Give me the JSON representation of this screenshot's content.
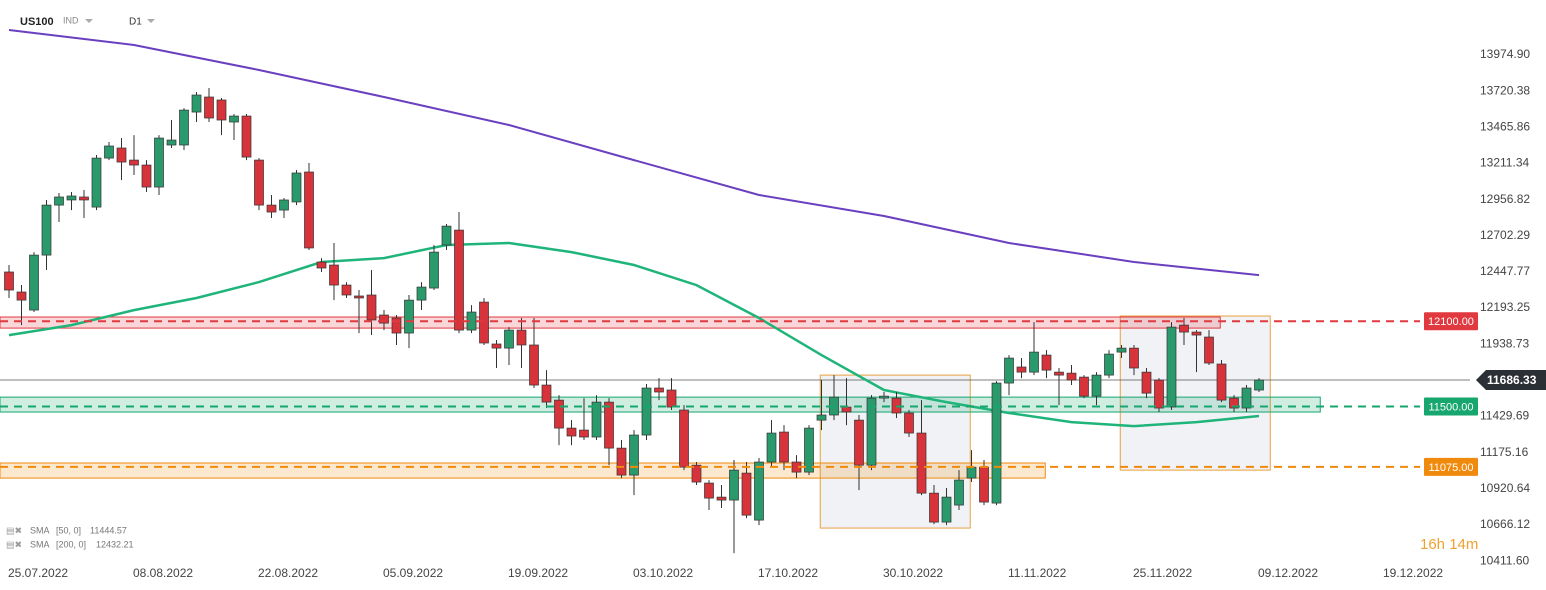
{
  "chart_data": {
    "type": "candlestick",
    "symbol": "US100",
    "market": "IND",
    "timeframe": "D1",
    "up_color": "#2a9a6c",
    "down_color": "#d6343a",
    "candles": {
      "open": [
        12447,
        12306,
        12179,
        12566,
        12918,
        12954,
        12975,
        12904,
        13249,
        13320,
        13235,
        13200,
        13045,
        13341,
        13341,
        13573,
        13679,
        13658,
        13503,
        13545,
        13235,
        12918,
        12883,
        12940,
        13151,
        12517,
        12496,
        12355,
        12278,
        12285,
        12144,
        12123,
        12017,
        12249,
        12334,
        12637,
        12742,
        12038,
        12235,
        11940,
        11911,
        12038,
        11933,
        11651,
        11545,
        11348,
        11334,
        11285,
        11531,
        11207,
        11017,
        11299,
        11630,
        11616,
        11475,
        11087,
        10961,
        10862,
        10841,
        11031,
        10700,
        11109,
        11320,
        11109,
        11038,
        11404,
        11440,
        11496,
        11404,
        11087,
        11559,
        11559,
        11454,
        11313,
        10890,
        10686,
        10806,
        10996,
        11073,
        10820,
        11665,
        11778,
        11742,
        11862,
        11742,
        11735,
        11707,
        11573,
        11721,
        11883,
        11911,
        11742,
        11686,
        11496,
        12073,
        12024,
        11989,
        11799,
        11559,
        11489,
        11616
      ],
      "high": [
        12496,
        12355,
        12587,
        12954,
        13003,
        13010,
        13024,
        13271,
        13362,
        13390,
        13411,
        13235,
        13411,
        13517,
        13601,
        13714,
        13742,
        13672,
        13559,
        13559,
        13249,
        12989,
        12968,
        13165,
        13214,
        12545,
        12651,
        12376,
        12320,
        12461,
        12179,
        12144,
        12285,
        12376,
        12637,
        12785,
        12869,
        12214,
        12264,
        11968,
        12059,
        12123,
        12123,
        11756,
        11580,
        11404,
        11559,
        11580,
        11559,
        11264,
        11334,
        11658,
        11700,
        11700,
        11510,
        11109,
        10982,
        10947,
        11123,
        11109,
        11137,
        11404,
        11369,
        11158,
        11369,
        11686,
        11721,
        11700,
        11440,
        11580,
        11602,
        11602,
        11475,
        11545,
        10947,
        10926,
        11052,
        11193,
        11123,
        11679,
        11862,
        11841,
        12094,
        11897,
        11771,
        11792,
        11721,
        11742,
        11897,
        11933,
        11933,
        11771,
        11700,
        12094,
        12123,
        12038,
        12038,
        11827,
        11580,
        11651,
        11700
      ],
      "low": [
        12264,
        12073,
        12165,
        12461,
        12799,
        12883,
        12827,
        12883,
        13235,
        13094,
        13130,
        13010,
        12989,
        13320,
        13306,
        13503,
        13503,
        13411,
        13376,
        13235,
        12883,
        12827,
        12827,
        12918,
        12602,
        12447,
        12249,
        12264,
        12017,
        12003,
        12038,
        11933,
        11911,
        12179,
        12320,
        12602,
        12017,
        12017,
        11933,
        11771,
        11792,
        11771,
        11630,
        11489,
        11228,
        11228,
        11264,
        11264,
        11087,
        10996,
        10876,
        11264,
        11545,
        11475,
        11052,
        10947,
        10771,
        10785,
        10468,
        10714,
        10665,
        11073,
        11052,
        10996,
        11017,
        11334,
        11404,
        11369,
        10911,
        11052,
        11531,
        11418,
        11285,
        10876,
        10672,
        10665,
        10771,
        10968,
        10806,
        10806,
        11580,
        11700,
        11721,
        11700,
        11510,
        11651,
        11559,
        11510,
        11700,
        11841,
        11721,
        11559,
        11461,
        11475,
        11933,
        11742,
        11792,
        11531,
        11461,
        11461,
        11602
      ],
      "close": [
        12320,
        12249,
        12566,
        12918,
        12975,
        12982,
        12954,
        13249,
        13334,
        13221,
        13200,
        13045,
        13390,
        13376,
        13587,
        13693,
        13531,
        13517,
        13545,
        13256,
        12918,
        12869,
        12954,
        13144,
        12616,
        12475,
        12355,
        12285,
        12264,
        12109,
        12087,
        12017,
        12249,
        12341,
        12587,
        12770,
        12038,
        12165,
        11947,
        11911,
        12038,
        11933,
        11651,
        11531,
        11348,
        11292,
        11285,
        11531,
        11207,
        11017,
        11299,
        11630,
        11602,
        11496,
        11073,
        10968,
        10855,
        10841,
        11052,
        10735,
        11109,
        11313,
        11109,
        11038,
        11348,
        11440,
        11566,
        11461,
        11087,
        11559,
        11573,
        11454,
        11313,
        10890,
        10686,
        10862,
        10982,
        11073,
        10827,
        11665,
        11841,
        11742,
        11883,
        11756,
        11721,
        11686,
        11573,
        11721,
        11869,
        11911,
        11771,
        11594,
        11489,
        12059,
        12024,
        12003,
        11806,
        11545,
        11489,
        11630,
        11686.33
      ]
    },
    "indicators": [
      {
        "name": "SMA",
        "params": "[50, 0]",
        "value": 11444.57,
        "color": "#1fb47a",
        "x": [
          0,
          5,
          10,
          15,
          20,
          25,
          30,
          35,
          40,
          45,
          50,
          55,
          60,
          65,
          70,
          75,
          80,
          85,
          90,
          95,
          100
        ],
        "values": [
          12003,
          12073,
          12179,
          12264,
          12376,
          12517,
          12545,
          12637,
          12651,
          12587,
          12496,
          12355,
          12123,
          11862,
          11616,
          11531,
          11454,
          11390,
          11362,
          11390,
          11433
        ]
      },
      {
        "name": "SMA",
        "params": "[200, 0]",
        "value": 12432.21,
        "color": "#6a3fc0",
        "x": [
          0,
          10,
          20,
          30,
          40,
          50,
          60,
          70,
          80,
          90,
          100
        ],
        "values": [
          14151,
          14045,
          13869,
          13679,
          13482,
          13235,
          12989,
          12841,
          12651,
          12517,
          12425
        ]
      }
    ],
    "levels": [
      {
        "value": 12100,
        "label": "12100.00",
        "color": "#e0393f",
        "zone": [
          12052,
          12130
        ],
        "zone_x": [
          -0.72,
          96.9
        ]
      },
      {
        "value": 11500,
        "label": "11500.00",
        "color": "#16a66e",
        "zone": [
          11461,
          11566
        ],
        "zone_x": [
          -0.72,
          104.9
        ]
      },
      {
        "value": 11075,
        "label": "11075.00",
        "color": "#f08a0c",
        "zone": [
          10996,
          11102
        ],
        "zone_x": [
          -0.72,
          82.9
        ]
      }
    ],
    "boxes": [
      {
        "x": [
          64.9,
          76.9
        ],
        "y": [
          10644,
          11721
        ]
      },
      {
        "x": [
          88.9,
          100.9
        ],
        "y": [
          11052,
          12137
        ]
      }
    ],
    "last_price": 11686.33,
    "timer": "16h 14m",
    "xlim": [
      -0.72,
      116.88
    ],
    "xticks": [
      {
        "value": 0,
        "label": "25.07.2022"
      },
      {
        "value": 10,
        "label": "08.08.2022"
      },
      {
        "value": 20,
        "label": "22.08.2022"
      },
      {
        "value": 30,
        "label": "05.09.2022"
      },
      {
        "value": 40,
        "label": "19.09.2022"
      },
      {
        "value": 50,
        "label": "03.10.2022"
      },
      {
        "value": 60,
        "label": "17.10.2022"
      },
      {
        "value": 70,
        "label": "30.10.2022"
      },
      {
        "value": 80,
        "label": "11.11.2022"
      },
      {
        "value": 90,
        "label": "25.11.2022"
      },
      {
        "value": 100,
        "label": "09.12.2022"
      },
      {
        "value": 110,
        "label": "19.12.2022"
      }
    ],
    "ylim": [
      10384,
      14362
    ],
    "yticks": [
      {
        "value": 13974.9,
        "label": "13974.90"
      },
      {
        "value": 13720.38,
        "label": "13720.38"
      },
      {
        "value": 13465.86,
        "label": "13465.86"
      },
      {
        "value": 13211.34,
        "label": "13211.34"
      },
      {
        "value": 12956.82,
        "label": "12956.82"
      },
      {
        "value": 12702.29,
        "label": "12702.29"
      },
      {
        "value": 12447.77,
        "label": "12447.77"
      },
      {
        "value": 12193.25,
        "label": "12193.25"
      },
      {
        "value": 11938.73,
        "label": "11938.73"
      },
      {
        "value": 11429.69,
        "label": "11429.69"
      },
      {
        "value": 11175.16,
        "label": "11175.16"
      },
      {
        "value": 10920.64,
        "label": "10920.64"
      },
      {
        "value": 10666.12,
        "label": "10666.12"
      },
      {
        "value": 10411.6,
        "label": "10411.60"
      }
    ]
  }
}
